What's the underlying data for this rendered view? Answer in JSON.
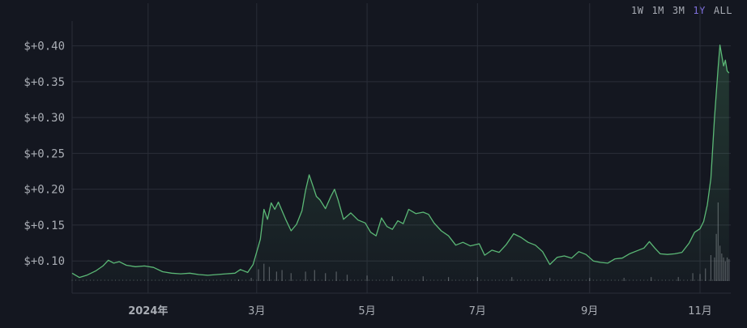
{
  "range_buttons": [
    {
      "label": "1W",
      "active": false
    },
    {
      "label": "1M",
      "active": false
    },
    {
      "label": "3M",
      "active": false
    },
    {
      "label": "1Y",
      "active": true
    },
    {
      "label": "ALL",
      "active": false
    }
  ],
  "colors": {
    "background": "#141720",
    "line": "#5bb876",
    "grid": "#2a2e38",
    "volume": "#8d9098",
    "active_range": "#7e6fdc"
  },
  "chart_data": {
    "type": "area",
    "y_ticks": [
      {
        "value": 0.1,
        "label": "$+0.10"
      },
      {
        "value": 0.15,
        "label": "$+0.15"
      },
      {
        "value": 0.2,
        "label": "$+0.20"
      },
      {
        "value": 0.25,
        "label": "$+0.25"
      },
      {
        "value": 0.3,
        "label": "$+0.30"
      },
      {
        "value": 0.35,
        "label": "$+0.35"
      },
      {
        "value": 0.4,
        "label": "$+0.40"
      }
    ],
    "x_ticks": [
      {
        "date": "2024-01-01",
        "label": "2024年",
        "bold": true
      },
      {
        "date": "2024-03-01",
        "label": "3月",
        "bold": false
      },
      {
        "date": "2024-05-01",
        "label": "5月",
        "bold": false
      },
      {
        "date": "2024-07-01",
        "label": "7月",
        "bold": false
      },
      {
        "date": "2024-09-01",
        "label": "9月",
        "bold": false
      },
      {
        "date": "2024-11-01",
        "label": "11月",
        "bold": false
      }
    ],
    "xlim": [
      "2023-11-20",
      "2024-11-18"
    ],
    "ylim": [
      0.072,
      0.43
    ],
    "grid": true,
    "series": [
      {
        "points": [
          [
            "2023-11-20",
            0.083
          ],
          [
            "2023-11-24",
            0.077
          ],
          [
            "2023-11-28",
            0.08
          ],
          [
            "2023-12-03",
            0.086
          ],
          [
            "2023-12-07",
            0.093
          ],
          [
            "2023-12-10",
            0.101
          ],
          [
            "2023-12-13",
            0.097
          ],
          [
            "2023-12-16",
            0.099
          ],
          [
            "2023-12-20",
            0.094
          ],
          [
            "2023-12-25",
            0.092
          ],
          [
            "2023-12-30",
            0.093
          ],
          [
            "2024-01-04",
            0.091
          ],
          [
            "2024-01-09",
            0.085
          ],
          [
            "2024-01-14",
            0.083
          ],
          [
            "2024-01-19",
            0.082
          ],
          [
            "2024-01-24",
            0.083
          ],
          [
            "2024-01-29",
            0.081
          ],
          [
            "2024-02-03",
            0.08
          ],
          [
            "2024-02-08",
            0.081
          ],
          [
            "2024-02-13",
            0.082
          ],
          [
            "2024-02-18",
            0.083
          ],
          [
            "2024-02-21",
            0.088
          ],
          [
            "2024-02-25",
            0.084
          ],
          [
            "2024-02-28",
            0.095
          ],
          [
            "2024-03-03",
            0.13
          ],
          [
            "2024-03-05",
            0.172
          ],
          [
            "2024-03-07",
            0.158
          ],
          [
            "2024-03-09",
            0.181
          ],
          [
            "2024-03-11",
            0.172
          ],
          [
            "2024-03-13",
            0.182
          ],
          [
            "2024-03-15",
            0.17
          ],
          [
            "2024-03-17",
            0.158
          ],
          [
            "2024-03-20",
            0.142
          ],
          [
            "2024-03-23",
            0.151
          ],
          [
            "2024-03-26",
            0.17
          ],
          [
            "2024-03-28",
            0.198
          ],
          [
            "2024-03-30",
            0.22
          ],
          [
            "2024-04-01",
            0.205
          ],
          [
            "2024-04-03",
            0.19
          ],
          [
            "2024-04-05",
            0.185
          ],
          [
            "2024-04-08",
            0.173
          ],
          [
            "2024-04-11",
            0.19
          ],
          [
            "2024-04-13",
            0.2
          ],
          [
            "2024-04-15",
            0.185
          ],
          [
            "2024-04-18",
            0.158
          ],
          [
            "2024-04-22",
            0.167
          ],
          [
            "2024-04-26",
            0.157
          ],
          [
            "2024-04-30",
            0.153
          ],
          [
            "2024-05-03",
            0.14
          ],
          [
            "2024-05-06",
            0.135
          ],
          [
            "2024-05-09",
            0.16
          ],
          [
            "2024-05-12",
            0.148
          ],
          [
            "2024-05-15",
            0.144
          ],
          [
            "2024-05-18",
            0.156
          ],
          [
            "2024-05-21",
            0.152
          ],
          [
            "2024-05-24",
            0.172
          ],
          [
            "2024-05-28",
            0.166
          ],
          [
            "2024-06-01",
            0.168
          ],
          [
            "2024-06-04",
            0.165
          ],
          [
            "2024-06-07",
            0.153
          ],
          [
            "2024-06-11",
            0.142
          ],
          [
            "2024-06-15",
            0.135
          ],
          [
            "2024-06-19",
            0.122
          ],
          [
            "2024-06-23",
            0.126
          ],
          [
            "2024-06-27",
            0.121
          ],
          [
            "2024-07-02",
            0.124
          ],
          [
            "2024-07-05",
            0.108
          ],
          [
            "2024-07-09",
            0.115
          ],
          [
            "2024-07-13",
            0.112
          ],
          [
            "2024-07-17",
            0.123
          ],
          [
            "2024-07-21",
            0.138
          ],
          [
            "2024-07-25",
            0.133
          ],
          [
            "2024-07-29",
            0.126
          ],
          [
            "2024-08-02",
            0.122
          ],
          [
            "2024-08-06",
            0.113
          ],
          [
            "2024-08-10",
            0.095
          ],
          [
            "2024-08-14",
            0.105
          ],
          [
            "2024-08-18",
            0.107
          ],
          [
            "2024-08-22",
            0.104
          ],
          [
            "2024-08-26",
            0.113
          ],
          [
            "2024-08-30",
            0.109
          ],
          [
            "2024-09-03",
            0.1
          ],
          [
            "2024-09-07",
            0.098
          ],
          [
            "2024-09-11",
            0.097
          ],
          [
            "2024-09-15",
            0.103
          ],
          [
            "2024-09-19",
            0.104
          ],
          [
            "2024-09-23",
            0.11
          ],
          [
            "2024-09-27",
            0.114
          ],
          [
            "2024-10-01",
            0.118
          ],
          [
            "2024-10-04",
            0.127
          ],
          [
            "2024-10-07",
            0.118
          ],
          [
            "2024-10-10",
            0.11
          ],
          [
            "2024-10-14",
            0.109
          ],
          [
            "2024-10-18",
            0.11
          ],
          [
            "2024-10-22",
            0.112
          ],
          [
            "2024-10-26",
            0.125
          ],
          [
            "2024-10-29",
            0.14
          ],
          [
            "2024-11-01",
            0.145
          ],
          [
            "2024-11-03",
            0.155
          ],
          [
            "2024-11-05",
            0.178
          ],
          [
            "2024-11-07",
            0.215
          ],
          [
            "2024-11-09",
            0.3
          ],
          [
            "2024-11-11",
            0.37
          ],
          [
            "2024-11-12",
            0.401
          ],
          [
            "2024-11-14",
            0.372
          ],
          [
            "2024-11-15",
            0.38
          ],
          [
            "2024-11-16",
            0.365
          ],
          [
            "2024-11-17",
            0.362
          ]
        ]
      }
    ],
    "volume": [
      [
        "2024-02-20",
        0.02
      ],
      [
        "2024-02-27",
        0.04
      ],
      [
        "2024-03-02",
        0.15
      ],
      [
        "2024-03-05",
        0.22
      ],
      [
        "2024-03-08",
        0.18
      ],
      [
        "2024-03-12",
        0.12
      ],
      [
        "2024-03-15",
        0.14
      ],
      [
        "2024-03-20",
        0.1
      ],
      [
        "2024-03-28",
        0.12
      ],
      [
        "2024-04-02",
        0.14
      ],
      [
        "2024-04-08",
        0.1
      ],
      [
        "2024-04-14",
        0.12
      ],
      [
        "2024-04-20",
        0.08
      ],
      [
        "2024-05-01",
        0.07
      ],
      [
        "2024-05-15",
        0.06
      ],
      [
        "2024-06-01",
        0.06
      ],
      [
        "2024-06-15",
        0.05
      ],
      [
        "2024-07-01",
        0.05
      ],
      [
        "2024-07-20",
        0.05
      ],
      [
        "2024-08-10",
        0.04
      ],
      [
        "2024-09-01",
        0.04
      ],
      [
        "2024-09-20",
        0.04
      ],
      [
        "2024-10-05",
        0.05
      ],
      [
        "2024-10-20",
        0.05
      ],
      [
        "2024-10-28",
        0.1
      ],
      [
        "2024-11-01",
        0.09
      ],
      [
        "2024-11-04",
        0.16
      ],
      [
        "2024-11-07",
        0.33
      ],
      [
        "2024-11-09",
        0.3
      ],
      [
        "2024-11-10",
        0.6
      ],
      [
        "2024-11-11",
        1.0
      ],
      [
        "2024-11-12",
        0.45
      ],
      [
        "2024-11-13",
        0.35
      ],
      [
        "2024-11-14",
        0.3
      ],
      [
        "2024-11-15",
        0.25
      ],
      [
        "2024-11-16",
        0.3
      ],
      [
        "2024-11-17",
        0.28
      ]
    ]
  }
}
